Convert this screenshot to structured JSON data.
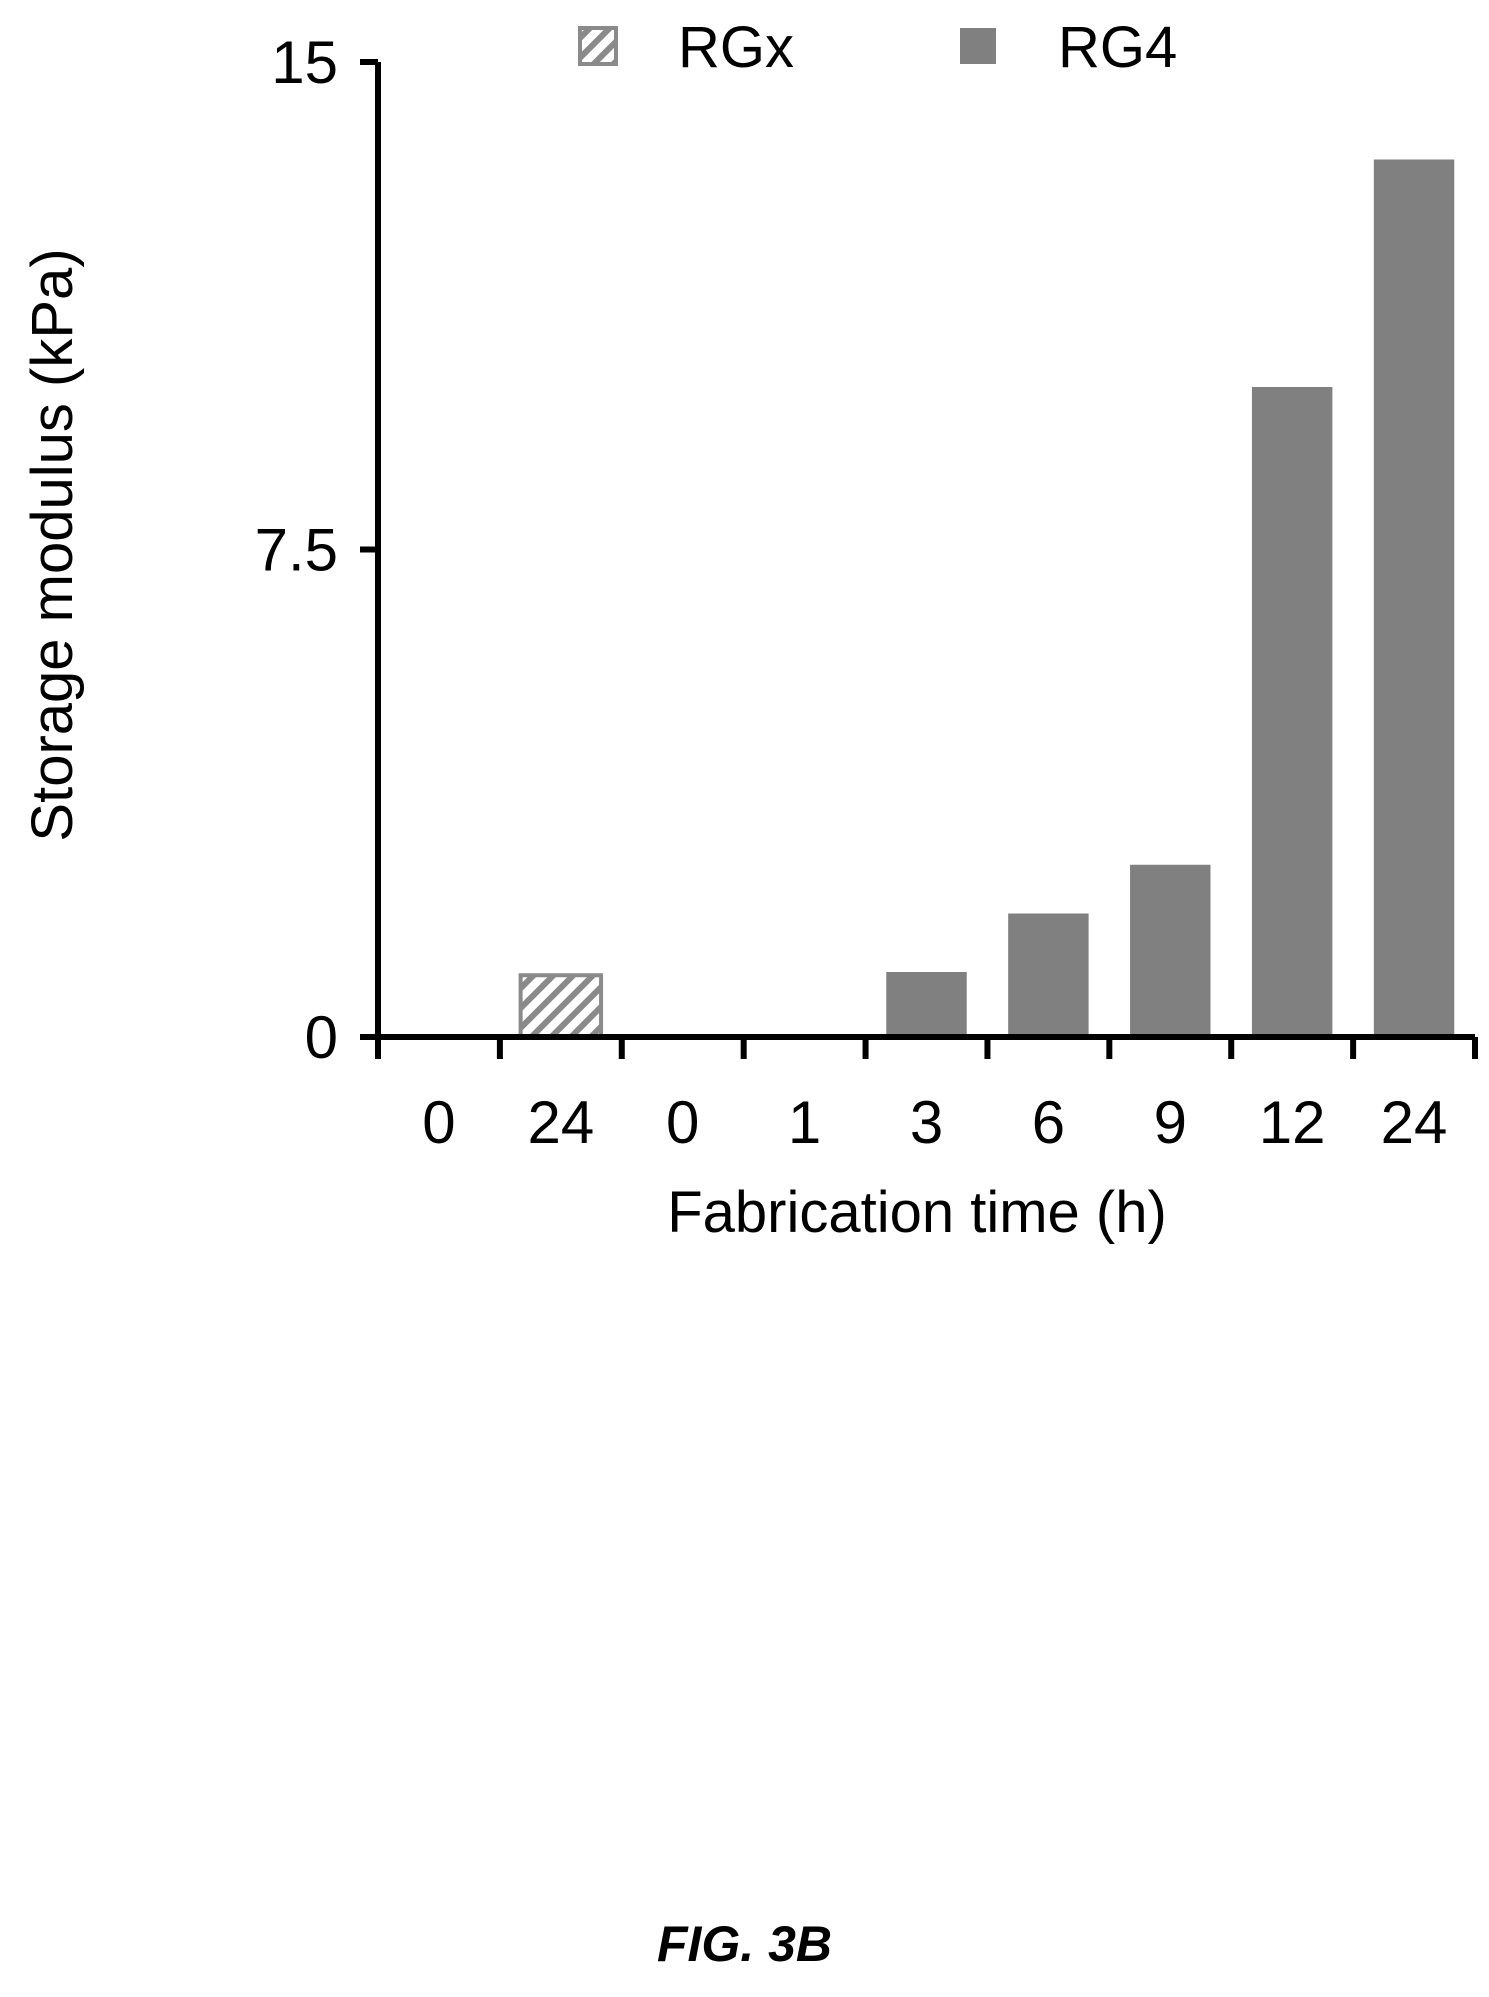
{
  "chart_data": {
    "type": "bar",
    "categories": [
      "0",
      "24",
      "0",
      "1",
      "3",
      "6",
      "9",
      "12",
      "24"
    ],
    "series": [
      {
        "name": "RGx",
        "values": [
          0,
          0.95,
          null,
          null,
          null,
          null,
          null,
          null,
          null
        ],
        "pattern": "hatched"
      },
      {
        "name": "RG4",
        "values": [
          null,
          null,
          0,
          0,
          1.0,
          1.9,
          2.65,
          10.0,
          13.5
        ],
        "pattern": "solid"
      }
    ],
    "xlabel": "Fabrication time (h)",
    "ylabel": "Storage modulus  (kPa)",
    "ylim": [
      0,
      15
    ],
    "yticks": [
      "0",
      "7.5",
      "15"
    ],
    "ytick_values": [
      0,
      7.5,
      15
    ],
    "legend_position": "top",
    "grid": false,
    "colors": {
      "rgx_stroke": "#8a8a8a",
      "rg4_fill": "#808080",
      "axis": "#000000"
    }
  },
  "caption": "FIG. 3B"
}
